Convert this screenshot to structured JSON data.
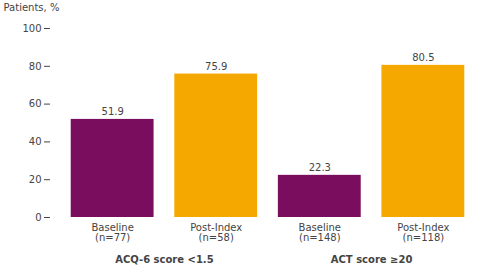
{
  "chart_data": {
    "type": "bar",
    "categories": [
      "Baseline\n(n=77)",
      "Post-Index\n(n=58)",
      "Baseline\n(n=148)",
      "Post-Index\n(n=118)"
    ],
    "values": [
      51.9,
      75.9,
      22.3,
      80.5
    ],
    "colors": [
      "#7B0D5E",
      "#F5A800",
      "#7B0D5E",
      "#F5A800"
    ],
    "ylabel": "Patients, %",
    "ylim": [
      0,
      100
    ],
    "yticks": [
      0,
      20,
      40,
      60,
      80,
      100
    ],
    "grid": false,
    "data_labels": true,
    "annotations": [
      {
        "text": "ACQ-6 score <1.5",
        "categories": [
          "Baseline\n(n=77)",
          "Post-Index\n(n=58)"
        ]
      },
      {
        "text": "ACT score ≥20",
        "categories": [
          "Baseline\n(n=148)",
          "Post-Index\n(n=118)"
        ]
      }
    ]
  }
}
